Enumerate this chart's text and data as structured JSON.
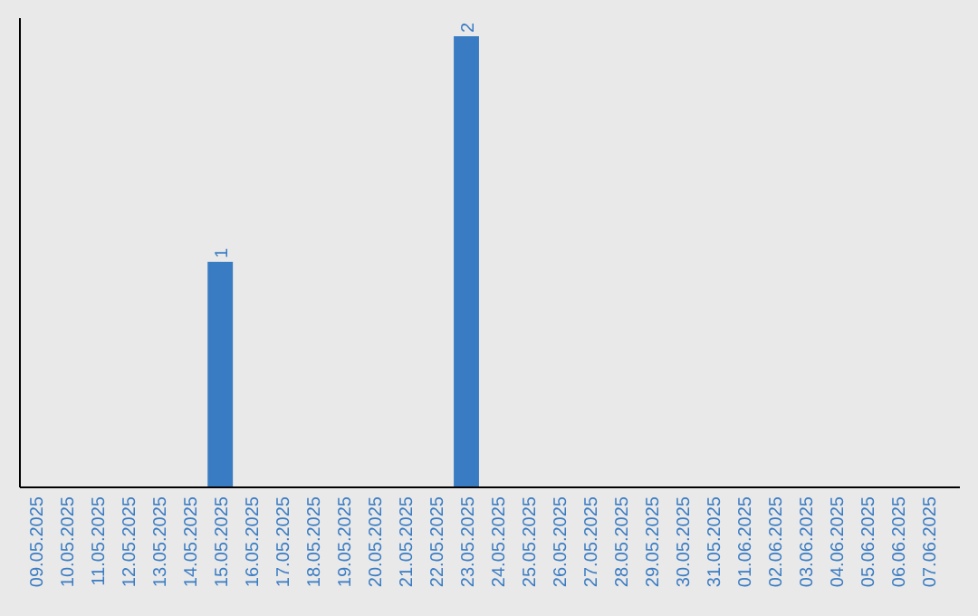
{
  "chart_data": {
    "type": "bar",
    "categories": [
      "09.05.2025",
      "10.05.2025",
      "11.05.2025",
      "12.05.2025",
      "13.05.2025",
      "14.05.2025",
      "15.05.2025",
      "16.05.2025",
      "17.05.2025",
      "18.05.2025",
      "19.05.2025",
      "20.05.2025",
      "21.05.2025",
      "22.05.2025",
      "23.05.2025",
      "24.05.2025",
      "25.05.2025",
      "26.05.2025",
      "27.05.2025",
      "28.05.2025",
      "29.05.2025",
      "30.05.2025",
      "31.05.2025",
      "01.06.2025",
      "02.06.2025",
      "03.06.2025",
      "04.06.2025",
      "05.06.2025",
      "06.06.2025",
      "07.06.2025"
    ],
    "values": [
      0,
      0,
      0,
      0,
      0,
      0,
      1,
      0,
      0,
      0,
      0,
      0,
      0,
      0,
      2,
      0,
      0,
      0,
      0,
      0,
      0,
      0,
      0,
      0,
      0,
      0,
      0,
      0,
      0,
      0
    ],
    "value_labels": [
      null,
      null,
      null,
      null,
      null,
      null,
      "1",
      null,
      null,
      null,
      null,
      null,
      null,
      null,
      "2",
      null,
      null,
      null,
      null,
      null,
      null,
      null,
      null,
      null,
      null,
      null,
      null,
      null,
      null,
      null
    ],
    "color": "#3a7cc3",
    "ylim": [
      0,
      2
    ],
    "tick_labels": "x"
  }
}
